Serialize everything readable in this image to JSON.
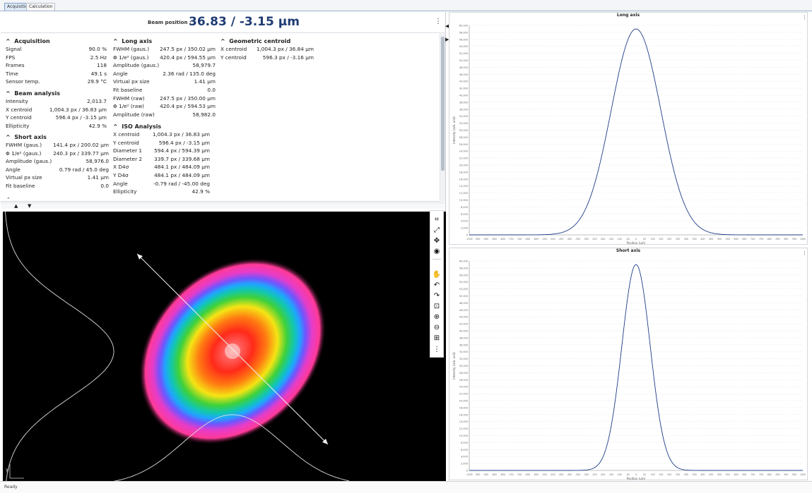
{
  "tabs": [
    {
      "label": "Acquisition"
    },
    {
      "label": "Calculation"
    }
  ],
  "beam_position": {
    "label": "Beam position :",
    "value": "36.83 / -3.15 µm"
  },
  "acquisition": {
    "title": "Acquisition",
    "rows": [
      {
        "label": "Signal",
        "value": "90.0 %"
      },
      {
        "label": "FPS",
        "value": "2.5 Hz"
      },
      {
        "label": "Frames",
        "value": "118"
      },
      {
        "label": "Time",
        "value": "49.1 s"
      },
      {
        "label": "Sensor temp.",
        "value": "29.9 °C"
      }
    ]
  },
  "beam_analysis": {
    "title": "Beam analysis",
    "rows": [
      {
        "label": "Intensity",
        "value": "2,013.7"
      },
      {
        "label": "X centroid",
        "value": "1,004.3 px / 36.83 µm"
      },
      {
        "label": "Y centroid",
        "value": "596.4 px / -3.15 µm"
      },
      {
        "label": "Ellipticity",
        "value": "42.9 %"
      }
    ]
  },
  "short_axis": {
    "title": "Short axis",
    "rows": [
      {
        "label": "FWHM (gaus.)",
        "value": "141.4 px / 200.02 µm"
      },
      {
        "label": "Φ 1/e² (gaus.)",
        "value": "240.3 px / 339.77 µm"
      },
      {
        "label": "Amplitude (gaus.)",
        "value": "58,976.0"
      },
      {
        "label": "Angle",
        "value": "0.79 rad / 45.0 deg"
      },
      {
        "label": "Virtual px size",
        "value": "1.41 µm"
      },
      {
        "label": "Fit baseline",
        "value": "0.0"
      }
    ]
  },
  "long_axis": {
    "title": "Long axis",
    "rows": [
      {
        "label": "FWHM (gaus.)",
        "value": "247.5 px / 350.02 µm"
      },
      {
        "label": "Φ 1/e² (gaus.)",
        "value": "420.4 px / 594.55 µm"
      },
      {
        "label": "Amplitude (gaus.)",
        "value": "58,979.7"
      },
      {
        "label": "Angle",
        "value": "2.36 rad / 135.0 deg"
      },
      {
        "label": "Virtual px size",
        "value": "1.41 µm"
      },
      {
        "label": "Fit baseline",
        "value": "0.0"
      },
      {
        "label": "FWHM (raw)",
        "value": "247.5 px / 350.00 µm"
      },
      {
        "label": "Φ 1/e² (raw)",
        "value": "420.4 px / 594.53 µm"
      },
      {
        "label": "Amplitude (raw)",
        "value": "58,982.0"
      }
    ]
  },
  "iso_analysis": {
    "title": "ISO Analysis",
    "rows": [
      {
        "label": "X centroid",
        "value": "1,004.3 px / 36.83 µm"
      },
      {
        "label": "Y centroid",
        "value": "596.4 px / -3.15 µm"
      },
      {
        "label": "Diameter 1",
        "value": "594.4 px / 594.39 µm"
      },
      {
        "label": "Diameter 2",
        "value": "339.7 px / 339.68 µm"
      },
      {
        "label": "X D4σ",
        "value": "484.1 px / 484.09 µm"
      },
      {
        "label": "Y D4σ",
        "value": "484.1 px / 484.09 µm"
      },
      {
        "label": "Angle",
        "value": "-0.79 rad / -45.00 deg"
      },
      {
        "label": "Ellipticity",
        "value": "42.9 %"
      }
    ]
  },
  "geometric_centroid": {
    "title": "Geometric centroid",
    "rows": [
      {
        "label": "X centroid",
        "value": "1,004.3 px / 36.84 µm"
      },
      {
        "label": "Y centroid",
        "value": "596.3 px / -3.16 µm"
      }
    ]
  },
  "axis_markers": {
    "x": "x",
    "y": "y"
  },
  "toolbar": {
    "icons": [
      "crop-icon",
      "expand-icon",
      "move-icon",
      "camera-icon",
      "pan-hand-icon",
      "undo-icon",
      "redo-icon",
      "zoom-fit-icon",
      "zoom-in-icon",
      "zoom-out-icon",
      "grid-add-icon",
      "more-icon"
    ]
  },
  "status": {
    "text": "Ready"
  },
  "chart_data": [
    {
      "type": "line",
      "title": "Long axis",
      "xlabel": "Position (µm)",
      "ylabel": "Intensity (arb. unit)",
      "xlim": [
        -1000,
        1000
      ],
      "ylim": [
        0,
        60000
      ],
      "grid": true,
      "legend": "top-right",
      "gaussian": {
        "amplitude": 58979.7,
        "center": 0,
        "fwhm": 350.02
      },
      "color": "#1f3c88"
    },
    {
      "type": "line",
      "title": "Short axis",
      "xlabel": "Position (µm)",
      "ylabel": "Intensity (arb. unit)",
      "xlim": [
        -1000,
        1000
      ],
      "ylim": [
        0,
        60000
      ],
      "grid": true,
      "legend": "top-right",
      "gaussian": {
        "amplitude": 58976.0,
        "center": 0,
        "fwhm": 200.02
      },
      "color": "#1f3c88"
    }
  ]
}
